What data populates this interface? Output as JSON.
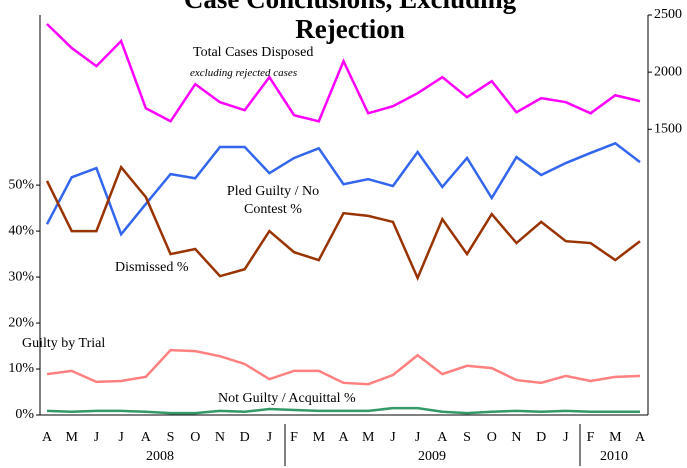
{
  "chart_data": {
    "type": "line",
    "title": "Case Conclusions, Excluding Rejection",
    "note": "excluding rejected cases",
    "categories": [
      "A",
      "M",
      "J",
      "J",
      "A",
      "S",
      "O",
      "N",
      "D",
      "J",
      "F",
      "M",
      "A",
      "M",
      "J",
      "J",
      "A",
      "S",
      "O",
      "N",
      "D",
      "J",
      "F",
      "M",
      "A"
    ],
    "years": [
      "2008",
      "2009",
      "2010"
    ],
    "ylim": [
      0,
      87
    ],
    "yticks": [
      {
        "value": 0,
        "label": "0%"
      },
      {
        "value": 10,
        "label": "10%"
      },
      {
        "value": 20,
        "label": "20%"
      },
      {
        "value": 30,
        "label": "30%"
      },
      {
        "value": 40,
        "label": "40%"
      },
      {
        "value": 50,
        "label": "50%"
      }
    ],
    "y2lim": [
      -1000,
      2500
    ],
    "y2ticks": [
      1500,
      2000,
      2500
    ],
    "series": [
      {
        "name": "Total Cases Disposed",
        "color": "#ff00ff",
        "axis": "y2",
        "values": [
          2421,
          2211,
          2053,
          2272,
          1684,
          1570,
          1895,
          1737,
          1667,
          1956,
          1623,
          1570,
          2096,
          1640,
          1702,
          1816,
          1956,
          1781,
          1921,
          1649,
          1772,
          1737,
          1640,
          1798,
          1746
        ]
      },
      {
        "name": "Pled Guilty / No Contest %",
        "color": "#3366ee",
        "values": [
          41.5,
          51.7,
          53.7,
          39.3,
          45.9,
          52.4,
          51.5,
          58.3,
          58.3,
          52.6,
          55.9,
          58.0,
          50.2,
          51.3,
          49.8,
          57.2,
          49.6,
          55.9,
          47.2,
          56.1,
          52.2,
          54.8,
          57.0,
          59.1,
          55.0
        ]
      },
      {
        "name": "Dismissed %",
        "color": "#993300",
        "values": [
          50.9,
          40.0,
          40.0,
          53.9,
          47.4,
          35.0,
          36.1,
          30.2,
          31.7,
          40.0,
          35.4,
          33.7,
          43.9,
          43.3,
          42.0,
          29.8,
          42.6,
          35.0,
          43.7,
          37.4,
          42.0,
          37.8,
          37.4,
          33.7,
          37.8
        ]
      },
      {
        "name": "Guilty by Trial",
        "color": "#ff8080",
        "values": [
          8.9,
          9.6,
          7.2,
          7.4,
          8.3,
          14.1,
          13.9,
          12.8,
          11.1,
          7.8,
          9.6,
          9.6,
          7.0,
          6.7,
          8.7,
          13.0,
          8.9,
          10.7,
          10.2,
          7.6,
          7.0,
          8.5,
          7.4,
          8.3,
          8.5
        ]
      },
      {
        "name": "Not Guilty / Acquittal %",
        "color": "#339966",
        "values": [
          0.9,
          0.7,
          0.9,
          0.9,
          0.7,
          0.4,
          0.4,
          0.9,
          0.7,
          1.3,
          1.1,
          0.9,
          0.9,
          0.9,
          1.5,
          1.5,
          0.7,
          0.4,
          0.7,
          0.9,
          0.7,
          0.9,
          0.7,
          0.7,
          0.7
        ]
      }
    ]
  }
}
